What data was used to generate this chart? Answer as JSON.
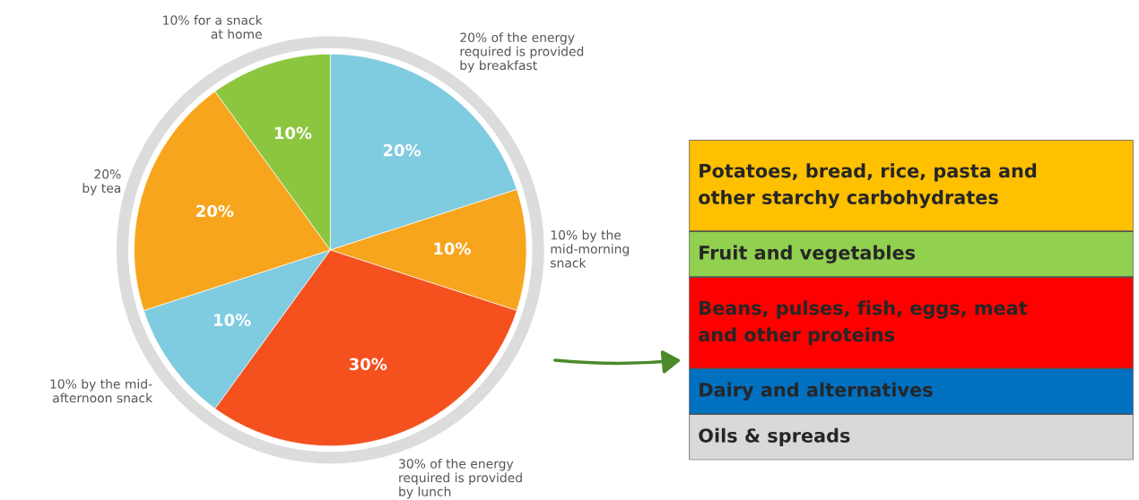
{
  "chart_data": [
    {
      "type": "pie",
      "categories": [
        "20% of the energy\nrequired is provided\nby breakfast",
        "10% by the\nmid-morning\nsnack",
        "30% of the energy\nrequired is provided\nby lunch",
        "10% by the mid-\nafternoon snack",
        "20%\nby tea",
        "10% for a snack\nat home"
      ],
      "values": [
        20,
        10,
        30,
        10,
        20,
        10
      ],
      "value_labels": [
        "20%",
        "10%",
        "30%",
        "10%",
        "20%",
        "10%"
      ],
      "colors": [
        "#7fcbe0",
        "#f7a51c",
        "#f4511e",
        "#7fcbe0",
        "#f7a51c",
        "#8cc63f"
      ]
    },
    {
      "type": "other",
      "categories": [
        "Potatoes, bread, rice, pasta and\nother starchy carbohydrates",
        "Fruit and vegetables",
        "Beans, pulses, fish, eggs, meat\nand other proteins",
        "Dairy and alternatives",
        "Oils & spreads"
      ],
      "colors": [
        "#ffc000",
        "#92d050",
        "#ff0000",
        "#0070c0",
        "#d9d9d9"
      ]
    }
  ]
}
